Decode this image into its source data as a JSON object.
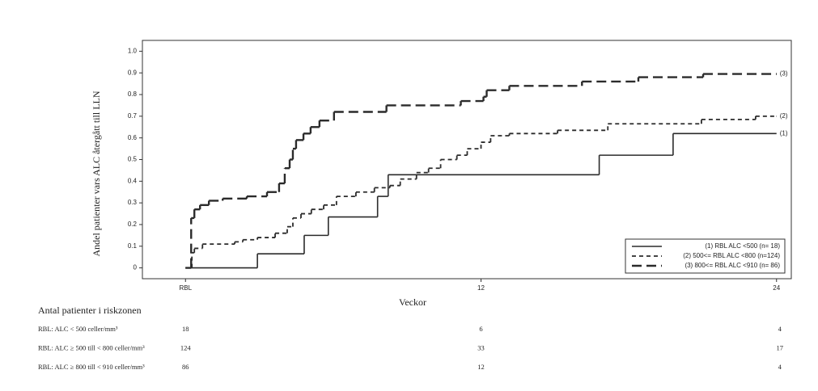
{
  "chart_data": {
    "type": "step",
    "y_label": "Andel patienter vars ALC återgått till LLN",
    "x_label": "Veckor",
    "xlim": [
      -1.75,
      24.6
    ],
    "ylim": [
      -0.05,
      1.05
    ],
    "xticks": [
      {
        "value": 0,
        "label": "RBL"
      },
      12,
      24
    ],
    "yticks": [
      0,
      0.1,
      0.2,
      0.3,
      0.4,
      0.5,
      0.6,
      0.7,
      0.8,
      0.9,
      {
        "value": 1,
        "label": "1.0"
      }
    ],
    "grid": false,
    "legend_position": "lower right",
    "series": [
      {
        "name": "(1) RBL ALC <500 (n= 18)",
        "end_label": "(1)",
        "color": "#2b2b2b",
        "dash": "solid",
        "x": [
          0,
          2.92,
          4.82,
          5.8,
          7.8,
          8.23,
          16.8,
          19.8,
          24
        ],
        "values": [
          0,
          0.065,
          0.15,
          0.235,
          0.33,
          0.43,
          0.52,
          0.62,
          0.62
        ]
      },
      {
        "name": "(2) 500<= RBL ALC <800 (n=124)",
        "end_label": "(2)",
        "color": "#2b2b2b",
        "dash": "short",
        "x": [
          0,
          0.26,
          0.36,
          0.69,
          2.0,
          2.33,
          2.92,
          3.64,
          4.13,
          4.36,
          4.69,
          5.11,
          5.61,
          6.13,
          6.92,
          7.67,
          8.3,
          8.72,
          9.38,
          9.87,
          10.36,
          11.02,
          11.44,
          12.0,
          12.39,
          13.15,
          15.11,
          17.15,
          20.95,
          23.15,
          24
        ],
        "values": [
          0,
          0.07,
          0.09,
          0.11,
          0.12,
          0.13,
          0.14,
          0.16,
          0.19,
          0.23,
          0.25,
          0.27,
          0.29,
          0.33,
          0.35,
          0.37,
          0.38,
          0.41,
          0.44,
          0.46,
          0.5,
          0.52,
          0.55,
          0.58,
          0.61,
          0.62,
          0.635,
          0.665,
          0.685,
          0.7,
          0.7
        ]
      },
      {
        "name": "(3) 800<= RBL ALC <910 (n= 86)",
        "end_label": "(3)",
        "color": "#2b2b2b",
        "dash": "long",
        "x": [
          0,
          0.23,
          0.36,
          0.59,
          0.95,
          1.51,
          2.49,
          3.31,
          3.8,
          4.03,
          4.23,
          4.36,
          4.49,
          4.79,
          5.08,
          5.44,
          6.03,
          8.16,
          11.18,
          12.1,
          12.23,
          13.15,
          16.1,
          18.39,
          21.02,
          24
        ],
        "values": [
          0,
          0.23,
          0.27,
          0.29,
          0.31,
          0.32,
          0.33,
          0.35,
          0.39,
          0.46,
          0.5,
          0.55,
          0.59,
          0.62,
          0.65,
          0.68,
          0.72,
          0.75,
          0.77,
          0.79,
          0.82,
          0.84,
          0.86,
          0.88,
          0.895,
          0.895
        ]
      }
    ],
    "risk_table": {
      "title": "Antal patienter i riskzonen",
      "rows": [
        {
          "label": "RBL: ALC < 500 celler/mm³",
          "counts": [
            18,
            6,
            4
          ]
        },
        {
          "label": "RBL: ALC ≥ 500 till < 800 celler/mm³",
          "counts": [
            124,
            33,
            17
          ]
        },
        {
          "label": "RBL: ALC ≥ 800 till < 910 celler/mm³",
          "counts": [
            86,
            12,
            4
          ]
        }
      ]
    }
  }
}
